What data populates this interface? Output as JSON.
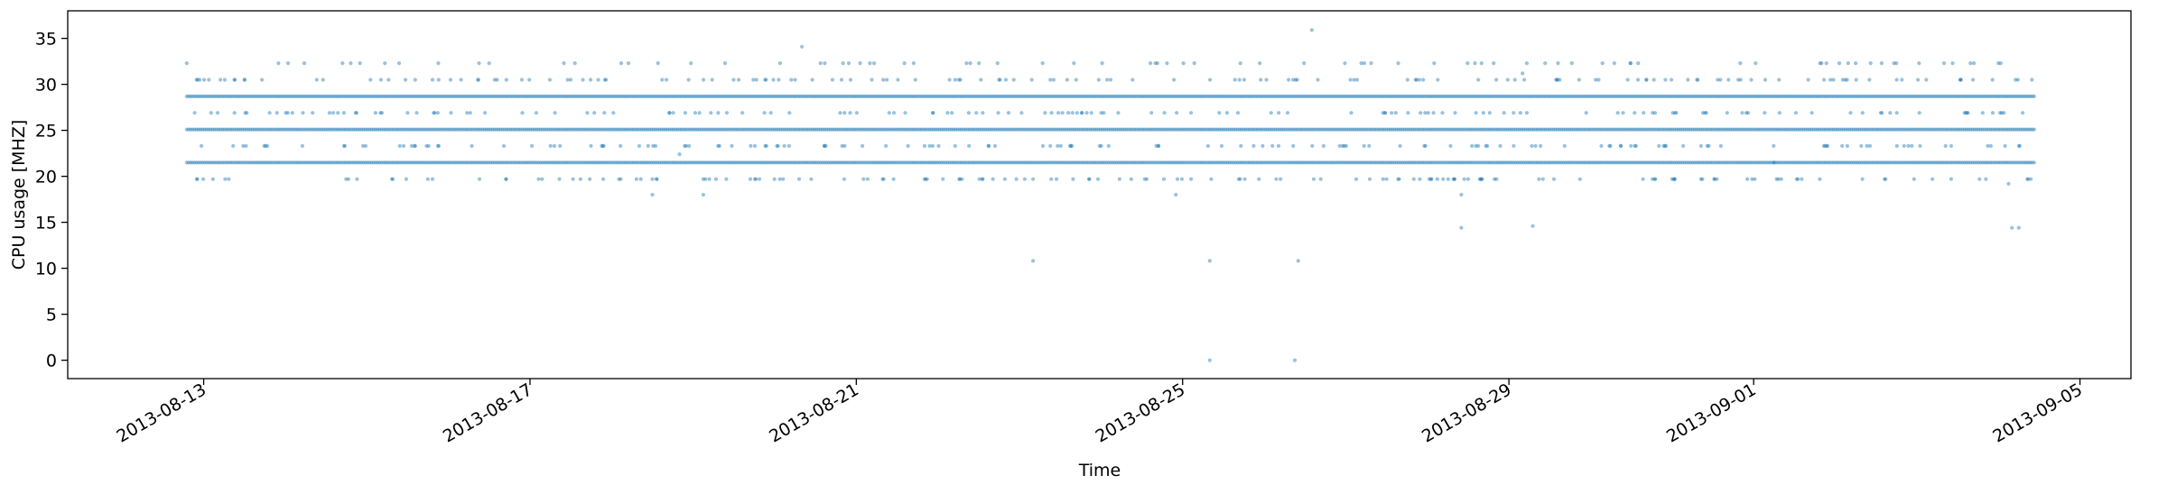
{
  "chart_data": {
    "type": "scatter",
    "title": "",
    "xlabel": "Time",
    "ylabel": "CPU usage [MHZ]",
    "xlim": [
      "2013-08-11T08:00:00",
      "2013-09-05T15:00:00"
    ],
    "ylim": [
      -2,
      38
    ],
    "x_tick_labels": [
      "2013-08-13",
      "2013-08-17",
      "2013-08-21",
      "2013-08-25",
      "2013-08-29",
      "2013-09-01",
      "2013-09-05"
    ],
    "y_tick_labels": [
      "0",
      "5",
      "10",
      "15",
      "20",
      "25",
      "30",
      "35"
    ],
    "y_ticks": [
      0,
      5,
      10,
      15,
      20,
      25,
      30,
      35
    ],
    "grid": false,
    "series": [
      {
        "color": "#1f77b4",
        "marker": "circle",
        "alpha": 0.45,
        "x_range": [
          "2013-08-12T19:00:00",
          "2013-09-04T11:00:00"
        ],
        "dense_levels": [
          21.5,
          25.1,
          28.7
        ],
        "scattered_levels": [
          19.7,
          23.3,
          26.9,
          30.5,
          32.3
        ],
        "points": [
          {
            "x": "2013-08-12T19:00:00",
            "y": 32.3
          },
          {
            "x": "2013-08-13T12:00:00",
            "y": 30.5
          },
          {
            "x": "2013-08-13T22:00:00",
            "y": 32.3
          },
          {
            "x": "2013-08-14T22:00:00",
            "y": 32.3
          },
          {
            "x": "2013-08-16T09:00:00",
            "y": 32.3
          },
          {
            "x": "2013-08-17T12:00:00",
            "y": 30.5
          },
          {
            "x": "2013-08-18T12:00:00",
            "y": 18.0
          },
          {
            "x": "2013-08-18T20:00:00",
            "y": 22.4
          },
          {
            "x": "2013-08-19T03:00:00",
            "y": 18.0
          },
          {
            "x": "2013-08-20T08:00:00",
            "y": 34.1
          },
          {
            "x": "2013-08-21T04:00:00",
            "y": 32.3
          },
          {
            "x": "2013-08-23T04:00:00",
            "y": 10.8
          },
          {
            "x": "2013-08-23T04:00:00",
            "y": 19.7
          },
          {
            "x": "2013-08-23T16:00:00",
            "y": 32.3
          },
          {
            "x": "2013-08-24T16:00:00",
            "y": 32.3
          },
          {
            "x": "2013-08-24T22:00:00",
            "y": 18.0
          },
          {
            "x": "2013-08-25T08:00:00",
            "y": 0.0
          },
          {
            "x": "2013-08-25T08:00:00",
            "y": 10.8
          },
          {
            "x": "2013-08-25T17:00:00",
            "y": 32.3
          },
          {
            "x": "2013-08-26T09:00:00",
            "y": 0.0
          },
          {
            "x": "2013-08-26T10:00:00",
            "y": 10.8
          },
          {
            "x": "2013-08-26T14:00:00",
            "y": 35.9
          },
          {
            "x": "2013-08-28T10:00:00",
            "y": 14.4
          },
          {
            "x": "2013-08-28T10:00:00",
            "y": 18.0
          },
          {
            "x": "2013-08-28T14:00:00",
            "y": 32.3
          },
          {
            "x": "2013-08-29T04:00:00",
            "y": 31.2
          },
          {
            "x": "2013-08-29T07:00:00",
            "y": 14.6
          },
          {
            "x": "2013-08-29T10:00:00",
            "y": 19.7
          },
          {
            "x": "2013-08-30T14:00:00",
            "y": 32.3
          },
          {
            "x": "2013-09-01T06:00:00",
            "y": 21.5
          },
          {
            "x": "2013-09-02T06:00:00",
            "y": 32.3
          },
          {
            "x": "2013-09-03T08:00:00",
            "y": 32.3
          },
          {
            "x": "2013-09-04T00:00:00",
            "y": 32.3
          },
          {
            "x": "2013-09-04T03:00:00",
            "y": 19.2
          },
          {
            "x": "2013-09-04T04:00:00",
            "y": 14.4
          },
          {
            "x": "2013-09-04T06:00:00",
            "y": 14.4
          }
        ]
      }
    ]
  }
}
